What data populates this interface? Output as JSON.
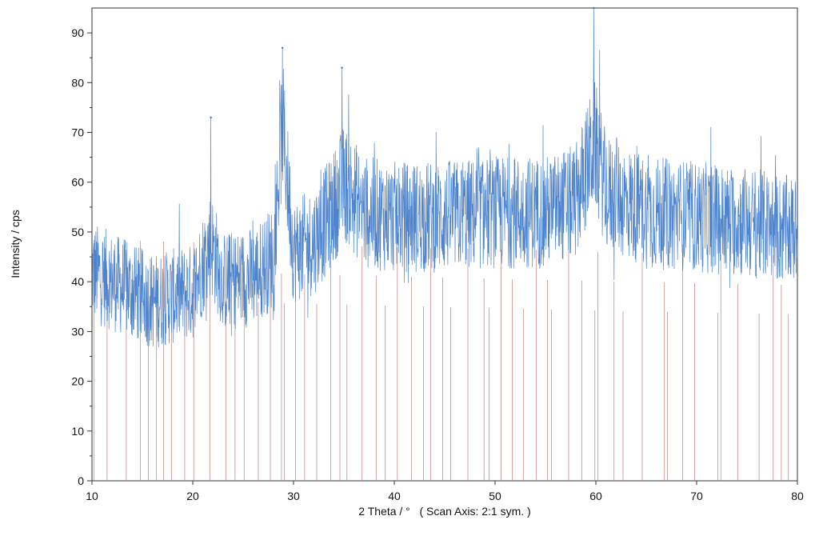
{
  "chart_data": {
    "type": "line",
    "title": "",
    "xlabel": "2 Theta / °   ( Scan Axis: 2:1 sym. )",
    "ylabel": "Intensity / cps",
    "xlim": [
      10,
      80
    ],
    "ylim": [
      0,
      95
    ],
    "x_ticks": [
      10,
      20,
      30,
      40,
      50,
      60,
      70,
      80
    ],
    "y_ticks": [
      0,
      10,
      20,
      30,
      40,
      50,
      60,
      70,
      80,
      90
    ],
    "grid": false,
    "series": [
      {
        "kind": "measured-pattern",
        "color": "#2f6fc4",
        "baseline_points": [
          [
            10,
            42
          ],
          [
            12,
            40
          ],
          [
            14,
            38
          ],
          [
            16,
            36
          ],
          [
            18,
            37
          ],
          [
            20,
            38
          ],
          [
            21.8,
            48
          ],
          [
            23,
            40
          ],
          [
            26,
            41
          ],
          [
            28,
            45
          ],
          [
            28.9,
            72
          ],
          [
            30,
            46
          ],
          [
            32,
            48
          ],
          [
            34,
            55
          ],
          [
            35,
            60
          ],
          [
            37,
            54
          ],
          [
            40,
            53
          ],
          [
            45,
            53
          ],
          [
            50,
            54
          ],
          [
            55,
            54
          ],
          [
            58,
            56
          ],
          [
            59.9,
            68
          ],
          [
            61,
            58
          ],
          [
            65,
            54
          ],
          [
            70,
            53
          ],
          [
            75,
            52
          ],
          [
            80,
            50
          ]
        ],
        "peaks": [
          {
            "x": 21.8,
            "y": 73
          },
          {
            "x": 28.9,
            "y": 87
          },
          {
            "x": 34.8,
            "y": 83
          },
          {
            "x": 59.8,
            "y": 95
          }
        ]
      },
      {
        "kind": "reference-lines",
        "color": "#b86a6a",
        "positions": [
          10.2,
          11.5,
          13.4,
          14.8,
          15.6,
          16.4,
          17.1,
          17.9,
          19.2,
          20.1,
          21.7,
          23.3,
          24.2,
          25.1,
          26.5,
          27.7,
          28.8,
          29.1,
          30.2,
          31.1,
          32.3,
          33.7,
          34.6,
          35.3,
          36.8,
          38.2,
          39.1,
          40.3,
          41.7,
          42.9,
          43.6,
          44.8,
          45.6,
          47.3,
          48.9,
          49.4,
          50.6,
          51.7,
          52.8,
          54.1,
          55.2,
          55.6,
          57.3,
          58.6,
          59.9,
          60.2,
          61.8,
          62.7,
          64.6,
          66.8,
          67.1,
          68.6,
          69.8,
          72.1,
          72.4,
          74.1,
          76.2,
          77.6,
          78.4,
          79.1
        ]
      }
    ]
  }
}
